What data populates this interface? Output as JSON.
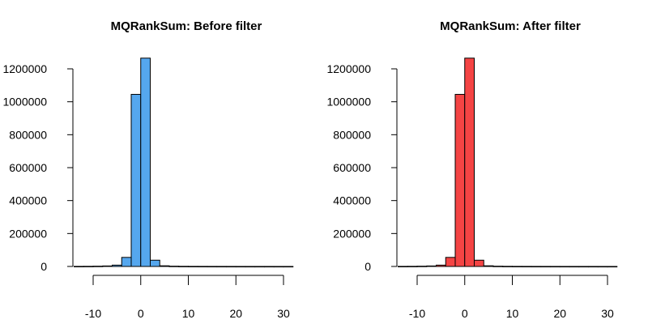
{
  "chart_data": [
    {
      "type": "bar",
      "title": "MQRankSum: Before filter",
      "bar_color": "#55a7ee",
      "xlabel": "",
      "ylabel": "",
      "xlim": [
        -14,
        32
      ],
      "ylim": [
        0,
        1270000
      ],
      "x_ticks": [
        -10,
        0,
        10,
        20,
        30
      ],
      "x_tick_labels": [
        "-10",
        "0",
        "10",
        "20",
        "30"
      ],
      "y_ticks": [
        0,
        200000,
        400000,
        600000,
        800000,
        1000000,
        1200000
      ],
      "y_tick_labels": [
        "0",
        "200000",
        "400000",
        "600000",
        "800000",
        "1000000",
        "1200000"
      ],
      "bin_edges": [
        -14,
        -12,
        -10,
        -8,
        -6,
        -4,
        -2,
        0,
        2,
        4,
        6,
        8,
        10,
        12,
        14,
        16,
        18,
        20,
        22,
        24,
        26,
        28,
        30,
        32
      ],
      "counts": [
        500,
        800,
        1500,
        3000,
        8000,
        55000,
        1045000,
        1265000,
        38000,
        4000,
        1500,
        800,
        500,
        400,
        300,
        250,
        200,
        150,
        120,
        100,
        80,
        60,
        50
      ]
    },
    {
      "type": "bar",
      "title": "MQRankSum: After filter",
      "bar_color": "#f44444",
      "xlabel": "",
      "ylabel": "",
      "xlim": [
        -14,
        32
      ],
      "ylim": [
        0,
        1270000
      ],
      "x_ticks": [
        -10,
        0,
        10,
        20,
        30
      ],
      "x_tick_labels": [
        "-10",
        "0",
        "10",
        "20",
        "30"
      ],
      "y_ticks": [
        0,
        200000,
        400000,
        600000,
        800000,
        1000000,
        1200000
      ],
      "y_tick_labels": [
        "0",
        "200000",
        "400000",
        "600000",
        "800000",
        "1000000",
        "1200000"
      ],
      "bin_edges": [
        -14,
        -12,
        -10,
        -8,
        -6,
        -4,
        -2,
        0,
        2,
        4,
        6,
        8,
        10,
        12,
        14,
        16,
        18,
        20,
        22,
        24,
        26,
        28,
        30,
        32
      ],
      "counts": [
        500,
        800,
        1500,
        3000,
        8000,
        55000,
        1045000,
        1265000,
        38000,
        4000,
        1500,
        800,
        500,
        400,
        300,
        250,
        200,
        150,
        120,
        100,
        80,
        60,
        50
      ]
    }
  ]
}
